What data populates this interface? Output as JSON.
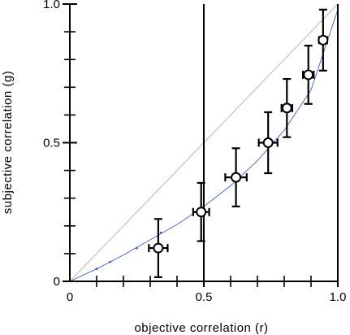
{
  "chart_data": {
    "type": "scatter",
    "title": "",
    "xlabel": "objective  correlation  (r)",
    "ylabel": "subjective  correlation  (g)",
    "xlim": [
      0,
      1
    ],
    "ylim": [
      0,
      1
    ],
    "x_ticks": [
      {
        "value": 0,
        "label": "0"
      },
      {
        "value": 0.5,
        "label": "0.5"
      },
      {
        "value": 1,
        "label": "1.0"
      }
    ],
    "y_ticks": [
      {
        "value": 0,
        "label": "0"
      },
      {
        "value": 0.5,
        "label": "0.5"
      },
      {
        "value": 1,
        "label": "1.0"
      }
    ],
    "x_minor_ticks": [
      0.1,
      0.2,
      0.3,
      0.4,
      0.6,
      0.7,
      0.8,
      0.9
    ],
    "y_minor_ticks": [
      0.1,
      0.2,
      0.3,
      0.4,
      0.6,
      0.7,
      0.8,
      0.9
    ],
    "identity_line": {
      "from": [
        0,
        0
      ],
      "to": [
        1,
        1
      ],
      "color": "#b8b8b8"
    },
    "fit_curve": {
      "color": "#3a5fc8",
      "points": [
        [
          0,
          0
        ],
        [
          0.1,
          0.045
        ],
        [
          0.2,
          0.095
        ],
        [
          0.3,
          0.15
        ],
        [
          0.4,
          0.205
        ],
        [
          0.5,
          0.27
        ],
        [
          0.6,
          0.345
        ],
        [
          0.7,
          0.435
        ],
        [
          0.8,
          0.545
        ],
        [
          0.9,
          0.69
        ],
        [
          1,
          0.98
        ]
      ],
      "markers": [
        [
          0.1,
          0.045
        ],
        [
          0.15,
          0.07
        ],
        [
          0.25,
          0.12
        ],
        [
          0.34,
          0.175
        ]
      ]
    },
    "series": [
      {
        "points": [
          {
            "x": 0.33,
            "y": 0.12,
            "xerr": 0.035,
            "yerr": 0.105
          },
          {
            "x": 0.49,
            "y": 0.25,
            "xerr": 0.03,
            "yerr": 0.105
          },
          {
            "x": 0.62,
            "y": 0.375,
            "xerr": 0.04,
            "yerr": 0.105
          },
          {
            "x": 0.74,
            "y": 0.5,
            "xerr": 0.035,
            "yerr": 0.11
          },
          {
            "x": 0.81,
            "y": 0.625,
            "xerr": 0.02,
            "yerr": 0.105
          },
          {
            "x": 0.89,
            "y": 0.745,
            "xerr": 0.02,
            "yerr": 0.105
          },
          {
            "x": 0.945,
            "y": 0.87,
            "xerr": 0.015,
            "yerr": 0.11
          }
        ]
      }
    ],
    "grid": false,
    "legend": "none"
  }
}
